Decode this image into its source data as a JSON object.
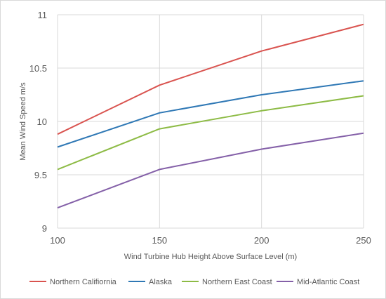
{
  "chart_data": {
    "type": "line",
    "x": [
      100,
      150,
      200,
      250
    ],
    "xlabel": "Wind Turbine Hub Height Above Surface Level (m)",
    "ylabel": "Mean Wind Speed m/s",
    "xlim": [
      100,
      250
    ],
    "ylim": [
      9,
      11
    ],
    "x_ticks": [
      "100",
      "150",
      "200",
      "250"
    ],
    "y_ticks": [
      "9",
      "9.5",
      "10",
      "10.5",
      "11"
    ],
    "grid": "on",
    "legend_position": "bottom",
    "series": [
      {
        "name": "Northern Califiornia",
        "color": "#d9534f",
        "values": [
          9.88,
          10.34,
          10.66,
          10.91
        ]
      },
      {
        "name": "Alaska",
        "color": "#2f78b5",
        "values": [
          9.76,
          10.08,
          10.25,
          10.38
        ]
      },
      {
        "name": "Northern East Coast",
        "color": "#8dbb45",
        "values": [
          9.55,
          9.93,
          10.1,
          10.24
        ]
      },
      {
        "name": "Mid-Atlantic Coast",
        "color": "#8460a8",
        "values": [
          9.19,
          9.55,
          9.74,
          9.89
        ]
      }
    ]
  }
}
